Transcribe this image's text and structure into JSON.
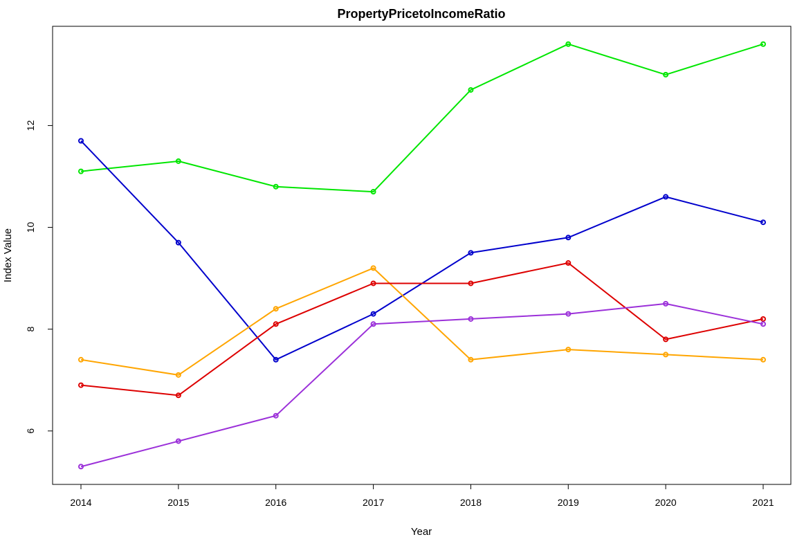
{
  "chart_data": {
    "type": "line",
    "title": "PropertyPricetoIncomeRatio",
    "xlabel": "Year",
    "ylabel": "Index Value",
    "x": [
      2014,
      2015,
      2016,
      2017,
      2018,
      2019,
      2020,
      2021
    ],
    "x_ticks": [
      "2014",
      "2015",
      "2016",
      "2017",
      "2018",
      "2019",
      "2020",
      "2021"
    ],
    "y_ticks": [
      "6",
      "8",
      "10",
      "12"
    ],
    "y_tick_values": [
      6,
      8,
      10,
      12
    ],
    "ylim": [
      4.95,
      13.95
    ],
    "grid": false,
    "legend": "none",
    "series": [
      {
        "color": "#00E600",
        "values": [
          11.1,
          11.3,
          10.8,
          10.7,
          12.7,
          13.6,
          13.0,
          13.6
        ]
      },
      {
        "color": "#0000CC",
        "values": [
          11.7,
          9.7,
          7.4,
          8.3,
          9.5,
          9.8,
          10.6,
          10.1
        ]
      },
      {
        "color": "#FFA500",
        "values": [
          7.4,
          7.1,
          8.4,
          9.2,
          7.4,
          7.6,
          7.5,
          7.4
        ]
      },
      {
        "color": "#DD0000",
        "values": [
          6.9,
          6.7,
          8.1,
          8.9,
          8.9,
          9.3,
          7.8,
          8.2
        ]
      },
      {
        "color": "#9B30D9",
        "values": [
          5.3,
          5.8,
          6.3,
          8.1,
          8.2,
          8.3,
          8.5,
          8.1
        ]
      }
    ]
  }
}
